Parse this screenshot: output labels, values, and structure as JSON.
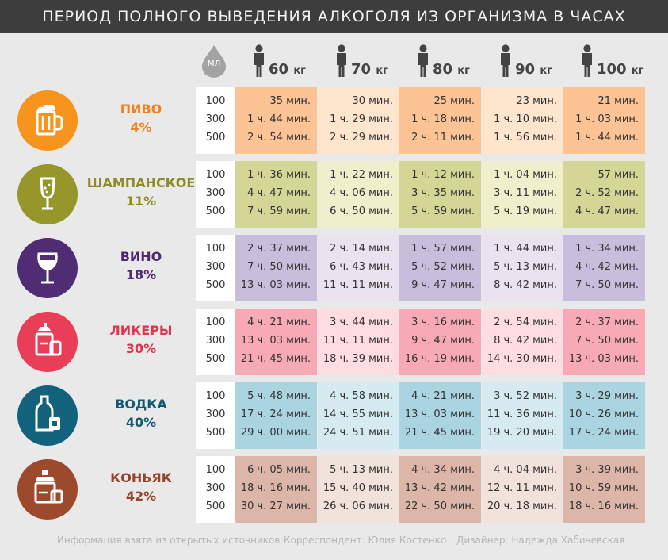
{
  "title": "ПЕРИОД ПОЛНОГО ВЫВЕДЕНИЯ АЛКОГОЛЯ ИЗ ОРГАНИЗМА В ЧАСАХ",
  "ml_label": "мл",
  "weights": [
    {
      "value": "60",
      "unit": "кг"
    },
    {
      "value": "70",
      "unit": "кг"
    },
    {
      "value": "80",
      "unit": "кг"
    },
    {
      "value": "90",
      "unit": "кг"
    },
    {
      "value": "100",
      "unit": "кг"
    }
  ],
  "volumes": [
    "100",
    "300",
    "500"
  ],
  "drinks": [
    {
      "name": "ПИВО",
      "percent": "4%",
      "icon": "beer-mug-icon",
      "color": "#f7941d",
      "name_color": "#f0821e",
      "colors": {
        "light": "#fee5cd",
        "dark": "#fcc495"
      },
      "times": [
        [
          "35 мин.",
          "30 мин.",
          "25 мин.",
          "23 мин.",
          "21 мин."
        ],
        [
          "1 ч. 44 мин.",
          "1 ч. 29 мин.",
          "1 ч. 18 мин.",
          "1 ч. 10 мин.",
          "1 ч. 03 мин."
        ],
        [
          "2 ч. 54 мин.",
          "2 ч. 29 мин.",
          "2 ч. 11 мин.",
          "1 ч. 56 мин.",
          "1 ч. 44 мин."
        ]
      ]
    },
    {
      "name": "ШАМПАНСКОЕ",
      "percent": "11%",
      "icon": "champagne-glass-icon",
      "color": "#96962a",
      "name_color": "#8d8c26",
      "colors": {
        "light": "#efefcc",
        "dark": "#d3d695"
      },
      "times": [
        [
          "1 ч. 36 мин.",
          "1 ч. 22 мин.",
          "1 ч. 12 мин.",
          "1 ч. 04 мин.",
          "57 мин."
        ],
        [
          "4 ч. 47 мин.",
          "4 ч. 06 мин.",
          "3 ч. 35 мин.",
          "3 ч. 11 мин.",
          "2 ч. 52 мин."
        ],
        [
          "7 ч. 59 мин.",
          "6 ч. 50 мин.",
          "5 ч. 59 мин.",
          "5 ч. 19 мин.",
          "4 ч. 47 мин."
        ]
      ]
    },
    {
      "name": "ВИНО",
      "percent": "18%",
      "icon": "wine-glass-icon",
      "color": "#4f2c73",
      "name_color": "#4e2a72",
      "colors": {
        "light": "#e8e3ef",
        "dark": "#c9bddc"
      },
      "times": [
        [
          "2 ч. 37 мин.",
          "2 ч. 14 мин.",
          "1 ч. 57 мин.",
          "1 ч. 44 мин.",
          "1 ч. 34 мин."
        ],
        [
          "7 ч. 50 мин.",
          "6 ч. 43 мин.",
          "5 ч. 52 мин.",
          "5 ч. 13 мин.",
          "4 ч. 42 мин."
        ],
        [
          "13 ч. 03 мин.",
          "11 ч. 11 мин.",
          "9 ч. 47 мин.",
          "8 ч. 42 мин.",
          "7 ч. 50 мин."
        ]
      ]
    },
    {
      "name": "ЛИКЕРЫ",
      "percent": "30%",
      "icon": "liquor-bottle-icon",
      "color": "#e93e57",
      "name_color": "#e0334c",
      "colors": {
        "light": "#fddde2",
        "dark": "#f7aab6"
      },
      "times": [
        [
          "4 ч. 21 мин.",
          "3 ч. 44 мин.",
          "3 ч. 16 мин.",
          "2 ч. 54 мин.",
          "2 ч. 37 мин."
        ],
        [
          "13 ч. 03 мин.",
          "11 ч. 11 мин.",
          "9 ч. 47 мин.",
          "8 ч. 42 мин.",
          "7 ч. 50 мин."
        ],
        [
          "21 ч. 45 мин.",
          "18 ч. 39 мин.",
          "16 ч. 19 мин.",
          "14 ч. 30 мин.",
          "13 ч. 03 мин."
        ]
      ]
    },
    {
      "name": "ВОДКА",
      "percent": "40%",
      "icon": "vodka-bottle-icon",
      "color": "#13627c",
      "name_color": "#155a74",
      "colors": {
        "light": "#d6ebf1",
        "dark": "#a9d4e0"
      },
      "times": [
        [
          "5 ч. 48 мин.",
          "4 ч. 58 мин.",
          "4 ч. 21 мин.",
          "3 ч. 52 мин.",
          "3 ч. 29 мин."
        ],
        [
          "17 ч. 24 мин.",
          "14 ч. 55 мин.",
          "13 ч. 03 мин.",
          "11 ч. 36 мин.",
          "10 ч. 26 мин."
        ],
        [
          "29 ч. 00 мин.",
          "24 ч. 51 мин.",
          "21 ч. 45 мин.",
          "19 ч. 20 мин.",
          "17 ч. 24 мин."
        ]
      ]
    },
    {
      "name": "КОНЬЯК",
      "percent": "42%",
      "icon": "cognac-bottle-icon",
      "color": "#9c4a2b",
      "name_color": "#94442a",
      "colors": {
        "light": "#f1e2dc",
        "dark": "#dcb6a8"
      },
      "times": [
        [
          "6 ч. 05 мин.",
          "5 ч. 13 мин.",
          "4 ч. 34 мин.",
          "4 ч. 04 мин.",
          "3 ч. 39 мин."
        ],
        [
          "18 ч. 16 мин.",
          "15 ч. 40 мин.",
          "13 ч. 42 мин.",
          "12 ч. 11 мин.",
          "10 ч. 59 мин."
        ],
        [
          "30 ч. 27 мин.",
          "26 ч. 06 мин.",
          "22 ч. 50 мин.",
          "20 ч. 18 мин.",
          "18 ч. 16 мин."
        ]
      ]
    }
  ],
  "footer": {
    "source": "Информация взята из открытых источников",
    "correspondent": "Корреспондент: Юлия Костенко",
    "designer": "Дизайнер: Надежда Хабичевская"
  }
}
